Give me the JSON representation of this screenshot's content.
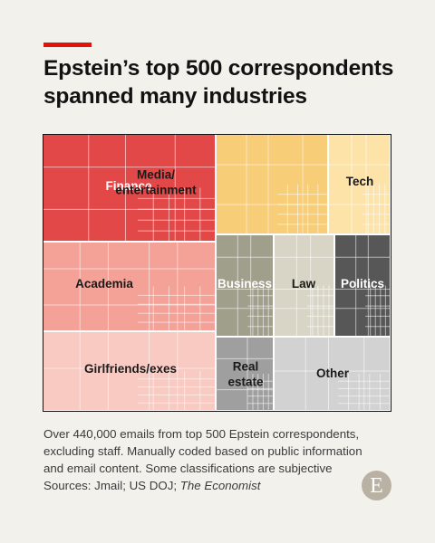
{
  "header": {
    "title_line1": "Epstein’s top 500 correspondents",
    "title_line2": "spanned many industries"
  },
  "chart_data": {
    "type": "treemap",
    "categories": [
      "Finance",
      "Media/\nentertainment",
      "Tech",
      "Academia",
      "Business",
      "Law",
      "Politics",
      "Girlfriends/exes",
      "Real\nestate",
      "Other"
    ],
    "values": [
      20.1,
      12.2,
      6.1,
      18.7,
      5.6,
      5.6,
      5.1,
      16.1,
      5.0,
      10.5
    ],
    "unit": "% of emails (estimated)",
    "colors": {
      "Finance": "#e34848",
      "Media/\nentertainment": "#f7cd77",
      "Tech": "#fde3a8",
      "Academia": "#f4a198",
      "Business": "#a09f8c",
      "Law": "#d9d5c6",
      "Politics": "#575757",
      "Girlfriends/exes": "#f9cac2",
      "Real\nestate": "#9f9f9f",
      "Other": "#d2d2d2"
    }
  },
  "footnote": {
    "line1": "Over 440,000 emails from top 500 Epstein correspondents,",
    "line2": "excluding staff. Manually coded based on public information",
    "line3": "and email content. Some classifications are subjective",
    "sources_prefix": "Sources: Jmail; US DOJ; ",
    "sources_italic": "The Economist"
  },
  "brand": {
    "logo_letter": "E",
    "accent_color": "#e3120b"
  }
}
